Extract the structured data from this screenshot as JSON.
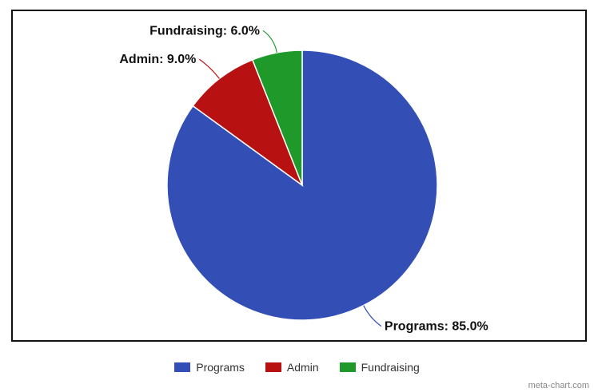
{
  "chart_data": {
    "type": "pie",
    "slices": [
      {
        "name": "Programs",
        "value": 85.0,
        "label": "Programs: 85.0%",
        "color": "#334fb5"
      },
      {
        "name": "Admin",
        "value": 9.0,
        "label": "Admin: 9.0%",
        "color": "#b81111"
      },
      {
        "name": "Fundraising",
        "value": 6.0,
        "label": "Fundraising: 6.0%",
        "color": "#1f9a2a"
      }
    ],
    "legend_placement": "bottom"
  },
  "legend": {
    "items": [
      {
        "label": "Programs",
        "color": "#334fb5"
      },
      {
        "label": "Admin",
        "color": "#b81111"
      },
      {
        "label": "Fundraising",
        "color": "#1f9a2a"
      }
    ]
  },
  "credit": "meta-chart.com"
}
